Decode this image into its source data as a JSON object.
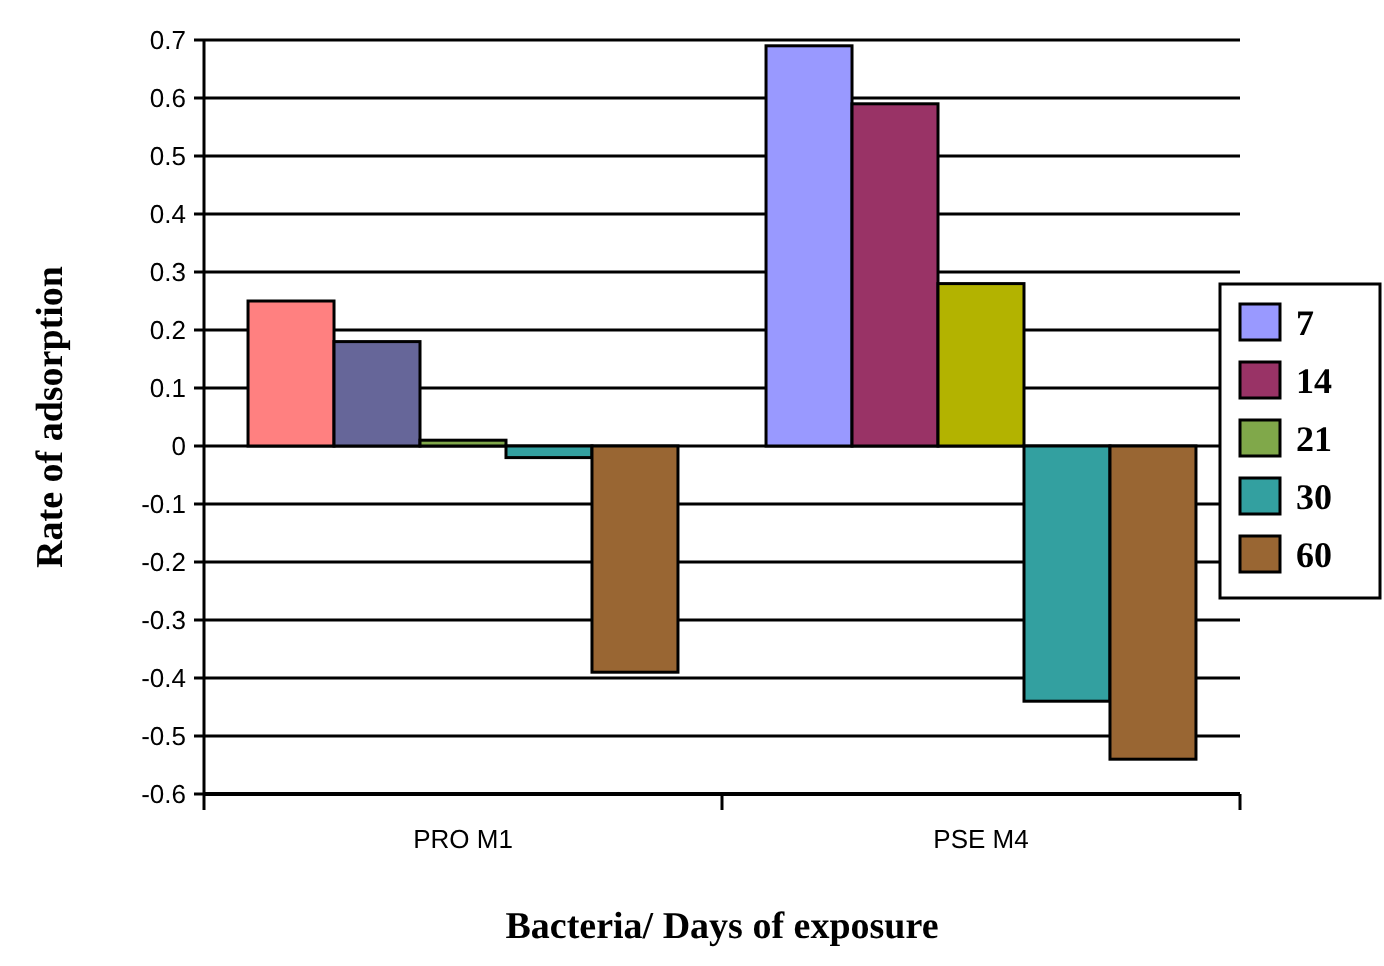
{
  "chart_data": {
    "type": "bar",
    "xlabel": "Bacteria/ Days of exposure",
    "ylabel": "Rate of adsorption",
    "categories": [
      "PRO M1",
      "PSE M4"
    ],
    "series": [
      {
        "name": "7",
        "color": "#9999ff",
        "colors": [
          "#ff8080",
          "#9999ff"
        ],
        "values": [
          0.25,
          0.69
        ]
      },
      {
        "name": "14",
        "color": "#993366",
        "colors": [
          "#666699",
          "#993366"
        ],
        "values": [
          0.18,
          0.59
        ]
      },
      {
        "name": "21",
        "color": "#80a84a",
        "colors": [
          "#80a84a",
          "#b3b300"
        ],
        "values": [
          0.01,
          0.28
        ]
      },
      {
        "name": "30",
        "color": "#33a0a0",
        "colors": [
          "#33a0a0",
          "#33a0a0"
        ],
        "values": [
          -0.02,
          -0.44
        ]
      },
      {
        "name": "60",
        "color": "#996633",
        "colors": [
          "#996633",
          "#996633"
        ],
        "values": [
          -0.39,
          -0.54
        ]
      }
    ],
    "ylim": [
      -0.6,
      0.7
    ],
    "yticks": [
      -0.6,
      -0.5,
      -0.4,
      -0.3,
      -0.2,
      -0.1,
      0,
      0.1,
      0.2,
      0.3,
      0.4,
      0.5,
      0.6,
      0.7
    ],
    "grid": "y",
    "legend": "right"
  }
}
